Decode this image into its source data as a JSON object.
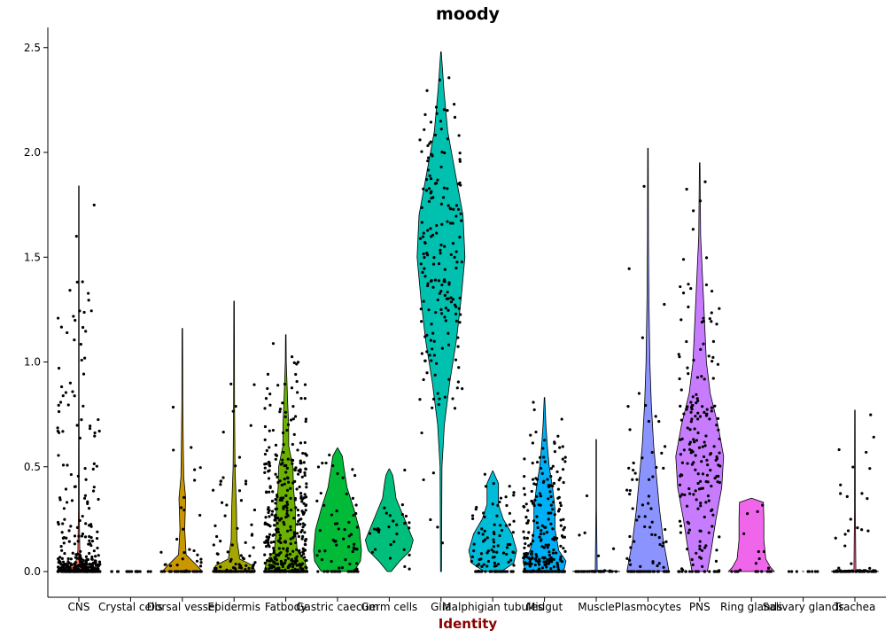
{
  "chart_data": {
    "type": "violin",
    "title": "moody",
    "xlabel": "Identity",
    "ylabel": "",
    "ylim": [
      -0.12,
      2.62
    ],
    "yticks": [
      0.0,
      0.5,
      1.0,
      1.5,
      2.0,
      2.5
    ],
    "ytick_labels": [
      "0.0",
      "0.5",
      "1.0",
      "1.5",
      "2.0",
      "2.5"
    ],
    "grid": false,
    "legend": "none",
    "categories": [
      "CNS",
      "Crystal cells",
      "Dorsal vessel",
      "Epidermis",
      "Fatbody",
      "Gastric caecum",
      "Germ cells",
      "Glia",
      "Malphigian tubules",
      "Midgut",
      "Muscle",
      "Plasmocytes",
      "PNS",
      "Ring glands",
      "Salivary glands",
      "Trachea"
    ],
    "colors": [
      "#F8766D",
      "#E58700",
      "#C99800",
      "#A3A500",
      "#6BB100",
      "#00BA38",
      "#00BF7D",
      "#00C0AF",
      "#00BCD8",
      "#00B0F6",
      "#619CFF",
      "#8B93FF",
      "#C77CFF",
      "#F066EA",
      "#FF61C3",
      "#FF6C91"
    ],
    "violins": [
      {
        "category": "CNS",
        "max": 1.84,
        "n_points": 380,
        "zero_fraction": 0.25,
        "profile": [
          [
            0,
            0.22
          ],
          [
            0.02,
            0.2
          ],
          [
            0.05,
            0.06
          ],
          [
            0.1,
            0.02
          ],
          [
            0.3,
            0.008
          ],
          [
            0.8,
            0.003
          ],
          [
            1.84,
            0.0
          ]
        ]
      },
      {
        "category": "Crystal cells",
        "max": 0.0,
        "n_points": 20,
        "zero_fraction": 1.0,
        "profile": [
          [
            0,
            0.02
          ],
          [
            0.001,
            0.0
          ]
        ]
      },
      {
        "category": "Dorsal vessel",
        "max": 1.16,
        "n_points": 60,
        "zero_fraction": 0.55,
        "profile": [
          [
            0,
            0.42
          ],
          [
            0.03,
            0.3
          ],
          [
            0.08,
            0.08
          ],
          [
            0.2,
            0.05
          ],
          [
            0.35,
            0.07
          ],
          [
            0.45,
            0.03
          ],
          [
            0.6,
            0.02
          ],
          [
            0.8,
            0.01
          ],
          [
            1.16,
            0.0
          ]
        ]
      },
      {
        "category": "Epidermis",
        "max": 1.29,
        "n_points": 130,
        "zero_fraction": 0.45,
        "profile": [
          [
            0,
            0.45
          ],
          [
            0.03,
            0.38
          ],
          [
            0.06,
            0.12
          ],
          [
            0.15,
            0.06
          ],
          [
            0.3,
            0.05
          ],
          [
            0.5,
            0.02
          ],
          [
            0.8,
            0.01
          ],
          [
            1.29,
            0.0
          ]
        ]
      },
      {
        "category": "Fatbody",
        "max": 1.13,
        "n_points": 460,
        "zero_fraction": 0.2,
        "profile": [
          [
            0,
            0.45
          ],
          [
            0.05,
            0.4
          ],
          [
            0.1,
            0.24
          ],
          [
            0.2,
            0.2
          ],
          [
            0.3,
            0.2
          ],
          [
            0.4,
            0.16
          ],
          [
            0.5,
            0.15
          ],
          [
            0.6,
            0.06
          ],
          [
            0.7,
            0.06
          ],
          [
            0.8,
            0.04
          ],
          [
            1.0,
            0.01
          ],
          [
            1.13,
            0.0
          ]
        ]
      },
      {
        "category": "Gastric caecum",
        "max": 0.59,
        "n_points": 70,
        "zero_fraction": 0.25,
        "profile": [
          [
            0,
            0.34
          ],
          [
            0.05,
            0.48
          ],
          [
            0.1,
            0.5
          ],
          [
            0.2,
            0.46
          ],
          [
            0.3,
            0.34
          ],
          [
            0.4,
            0.2
          ],
          [
            0.5,
            0.13
          ],
          [
            0.55,
            0.1
          ],
          [
            0.59,
            0.0
          ]
        ]
      },
      {
        "category": "Germ cells",
        "max": 0.49,
        "n_points": 30,
        "zero_fraction": 0.0,
        "profile": [
          [
            0,
            0.04
          ],
          [
            0.05,
            0.22
          ],
          [
            0.1,
            0.44
          ],
          [
            0.15,
            0.5
          ],
          [
            0.25,
            0.32
          ],
          [
            0.35,
            0.14
          ],
          [
            0.42,
            0.1
          ],
          [
            0.46,
            0.07
          ],
          [
            0.49,
            0.0
          ]
        ]
      },
      {
        "category": "Glia",
        "max": 2.48,
        "n_points": 190,
        "zero_fraction": 0.0,
        "profile": [
          [
            0,
            0.01
          ],
          [
            0.5,
            0.02
          ],
          [
            0.7,
            0.07
          ],
          [
            0.9,
            0.18
          ],
          [
            1.1,
            0.32
          ],
          [
            1.3,
            0.42
          ],
          [
            1.5,
            0.5
          ],
          [
            1.7,
            0.46
          ],
          [
            1.9,
            0.3
          ],
          [
            2.1,
            0.14
          ],
          [
            2.3,
            0.06
          ],
          [
            2.48,
            0.0
          ]
        ]
      },
      {
        "category": "Malphigian tubules",
        "max": 0.48,
        "n_points": 110,
        "zero_fraction": 0.3,
        "profile": [
          [
            0,
            0.18
          ],
          [
            0.04,
            0.44
          ],
          [
            0.1,
            0.5
          ],
          [
            0.18,
            0.4
          ],
          [
            0.25,
            0.22
          ],
          [
            0.32,
            0.12
          ],
          [
            0.42,
            0.12
          ],
          [
            0.48,
            0.0
          ]
        ]
      },
      {
        "category": "Midgut",
        "max": 0.83,
        "n_points": 300,
        "zero_fraction": 0.3,
        "profile": [
          [
            0,
            0.4
          ],
          [
            0.05,
            0.45
          ],
          [
            0.1,
            0.3
          ],
          [
            0.2,
            0.22
          ],
          [
            0.3,
            0.22
          ],
          [
            0.4,
            0.17
          ],
          [
            0.5,
            0.1
          ],
          [
            0.6,
            0.06
          ],
          [
            0.7,
            0.03
          ],
          [
            0.83,
            0.0
          ]
        ]
      },
      {
        "category": "Muscle",
        "max": 0.63,
        "n_points": 40,
        "zero_fraction": 0.8,
        "profile": [
          [
            0,
            0.5
          ],
          [
            0.003,
            0.4
          ],
          [
            0.006,
            0.02
          ],
          [
            0.3,
            0.005
          ],
          [
            0.63,
            0.0
          ]
        ]
      },
      {
        "category": "Plasmocytes",
        "max": 2.02,
        "n_points": 90,
        "zero_fraction": 0.35,
        "profile": [
          [
            0,
            0.44
          ],
          [
            0.05,
            0.4
          ],
          [
            0.15,
            0.32
          ],
          [
            0.3,
            0.24
          ],
          [
            0.4,
            0.2
          ],
          [
            0.6,
            0.12
          ],
          [
            0.8,
            0.07
          ],
          [
            1.0,
            0.04
          ],
          [
            1.3,
            0.02
          ],
          [
            1.6,
            0.01
          ],
          [
            2.02,
            0.0
          ]
        ]
      },
      {
        "category": "PNS",
        "max": 1.95,
        "n_points": 210,
        "zero_fraction": 0.1,
        "profile": [
          [
            0,
            0.16
          ],
          [
            0.1,
            0.24
          ],
          [
            0.25,
            0.34
          ],
          [
            0.4,
            0.46
          ],
          [
            0.55,
            0.5
          ],
          [
            0.7,
            0.38
          ],
          [
            0.85,
            0.22
          ],
          [
            1.0,
            0.14
          ],
          [
            1.2,
            0.1
          ],
          [
            1.4,
            0.06
          ],
          [
            1.6,
            0.02
          ],
          [
            1.95,
            0.0
          ]
        ]
      },
      {
        "category": "Ring glands",
        "max": 0.35,
        "n_points": 20,
        "zero_fraction": 0.5,
        "profile": [
          [
            0,
            0.48
          ],
          [
            0.02,
            0.4
          ],
          [
            0.06,
            0.3
          ],
          [
            0.15,
            0.26
          ],
          [
            0.25,
            0.26
          ],
          [
            0.33,
            0.25
          ],
          [
            0.35,
            0.0
          ]
        ]
      },
      {
        "category": "Salivary glands",
        "max": 0.0,
        "n_points": 8,
        "zero_fraction": 1.0,
        "profile": [
          [
            0,
            0.02
          ],
          [
            0.001,
            0.0
          ]
        ]
      },
      {
        "category": "Trachea",
        "max": 0.77,
        "n_points": 80,
        "zero_fraction": 0.5,
        "profile": [
          [
            0,
            0.5
          ],
          [
            0.004,
            0.4
          ],
          [
            0.008,
            0.02
          ],
          [
            0.3,
            0.008
          ],
          [
            0.77,
            0.0
          ]
        ]
      }
    ]
  }
}
